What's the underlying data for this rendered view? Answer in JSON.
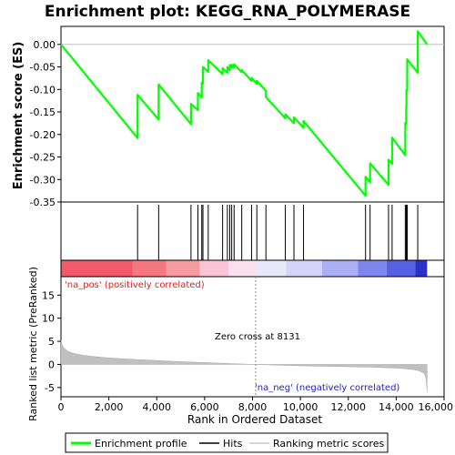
{
  "chart_data": {
    "type": "line",
    "title": "Enrichment plot: KEGG_RNA_POLYMERASE",
    "xlabel": "Rank in Ordered Dataset",
    "es_panel": {
      "ylabel": "Enrichment score (ES)",
      "ylim": [
        -0.35,
        0.04
      ],
      "yticks": [
        0.0,
        -0.05,
        -0.1,
        -0.15,
        -0.2,
        -0.25,
        -0.3,
        -0.35
      ],
      "ytick_labels": [
        "0.00",
        "-0.05",
        "-0.10",
        "-0.15",
        "-0.20",
        "-0.25",
        "-0.30",
        "-0.35"
      ]
    },
    "metric_panel": {
      "ylabel": "Ranked list metric (PreRanked)",
      "ylim": [
        -7,
        19
      ],
      "yticks": [
        15,
        10,
        5,
        0,
        -5
      ],
      "ytick_labels": [
        "15",
        "10",
        "5",
        "0",
        "-5"
      ],
      "zero_cross": 8131,
      "annotation_zero_cross": "Zero cross at 8131",
      "label_pos": "'na_pos' (positively correlated)",
      "label_neg": "'na_neg' (negatively correlated)"
    },
    "xlim": [
      0,
      16000
    ],
    "xticks": [
      0,
      2000,
      4000,
      6000,
      8000,
      10000,
      12000,
      14000,
      16000
    ],
    "xtick_labels": [
      "0",
      "2,000",
      "4,000",
      "6,000",
      "8,000",
      "10,000",
      "12,000",
      "14,000",
      "16,000"
    ],
    "n_genes": 15290,
    "hits": [
      3200,
      4080,
      5430,
      5720,
      5880,
      5930,
      6150,
      6750,
      6950,
      7050,
      7130,
      7230,
      7550,
      7960,
      8180,
      8560,
      9370,
      9730,
      10130,
      12720,
      12910,
      13680,
      13830,
      14380,
      14420,
      14430,
      14460,
      14900
    ],
    "es_curve": {
      "x": [
        0,
        3199,
        3200,
        4079,
        4080,
        5429,
        5430,
        5719,
        5720,
        5879,
        5880,
        5929,
        5930,
        6149,
        6150,
        6749,
        6750,
        6949,
        6950,
        7049,
        7050,
        7129,
        7130,
        7229,
        7230,
        7549,
        7550,
        7959,
        7960,
        8179,
        8180,
        8559,
        8560,
        9369,
        9370,
        9729,
        9730,
        10129,
        10130,
        12719,
        12720,
        12909,
        12910,
        13679,
        13680,
        13829,
        13830,
        14379,
        14380,
        14419,
        14420,
        14429,
        14430,
        14459,
        14460,
        14899,
        14900,
        15290
      ],
      "y": [
        0.0,
        -0.208,
        -0.112,
        -0.167,
        -0.089,
        -0.177,
        -0.132,
        -0.146,
        -0.108,
        -0.118,
        -0.085,
        -0.087,
        -0.05,
        -0.061,
        -0.035,
        -0.066,
        -0.053,
        -0.063,
        -0.05,
        -0.057,
        -0.046,
        -0.051,
        -0.045,
        -0.051,
        -0.044,
        -0.062,
        -0.057,
        -0.081,
        -0.074,
        -0.088,
        -0.081,
        -0.103,
        -0.117,
        -0.164,
        -0.155,
        -0.175,
        -0.162,
        -0.185,
        -0.17,
        -0.336,
        -0.294,
        -0.306,
        -0.264,
        -0.312,
        -0.256,
        -0.265,
        -0.207,
        -0.246,
        -0.175,
        -0.177,
        -0.137,
        -0.137,
        -0.101,
        -0.103,
        -0.033,
        -0.063,
        0.029,
        0.0
      ],
      "name": "Enrichment profile",
      "color": "#00ff00"
    },
    "metric_curve": {
      "x": [
        0,
        30,
        80,
        150,
        250,
        400,
        600,
        900,
        1300,
        1800,
        2500,
        3200,
        4000,
        5000,
        6000,
        7000,
        8131,
        9000,
        10000,
        11000,
        12000,
        13000,
        13500,
        14000,
        14400,
        14700,
        14900,
        15050,
        15150,
        15200,
        15240,
        15270,
        15290
      ],
      "y": [
        5.2,
        4.5,
        3.9,
        3.4,
        3.0,
        2.6,
        2.3,
        2.0,
        1.75,
        1.5,
        1.25,
        1.05,
        0.85,
        0.6,
        0.4,
        0.2,
        0.0,
        -0.15,
        -0.3,
        -0.4,
        -0.5,
        -0.6,
        -0.7,
        -0.8,
        -0.95,
        -1.1,
        -1.3,
        -1.6,
        -1.9,
        -2.3,
        -3.0,
        -4.5,
        -6.0
      ],
      "color": "#b0b0b0"
    },
    "heatmap_bands": [
      {
        "from": 0,
        "to": 3000,
        "color": "#f05a6a"
      },
      {
        "from": 3000,
        "to": 4400,
        "color": "#f5787f"
      },
      {
        "from": 4400,
        "to": 5800,
        "color": "#f89ba0"
      },
      {
        "from": 5800,
        "to": 7000,
        "color": "#fbc4d6"
      },
      {
        "from": 7000,
        "to": 8131,
        "color": "#fde0ee"
      },
      {
        "from": 8131,
        "to": 9400,
        "color": "#e8e8fb"
      },
      {
        "from": 9400,
        "to": 10900,
        "color": "#d2d4fa"
      },
      {
        "from": 10900,
        "to": 12400,
        "color": "#a9aef5"
      },
      {
        "from": 12400,
        "to": 13600,
        "color": "#7d86ee"
      },
      {
        "from": 13600,
        "to": 14800,
        "color": "#5561e2"
      },
      {
        "from": 14800,
        "to": 15290,
        "color": "#2b30c8"
      }
    ],
    "legend": {
      "placement": "bottom",
      "items": [
        {
          "label": "Enrichment profile",
          "color": "#00ff00"
        },
        {
          "label": "Hits",
          "color": "#000000"
        },
        {
          "label": "Ranking metric scores",
          "color": "#c8c8c8"
        }
      ]
    }
  }
}
